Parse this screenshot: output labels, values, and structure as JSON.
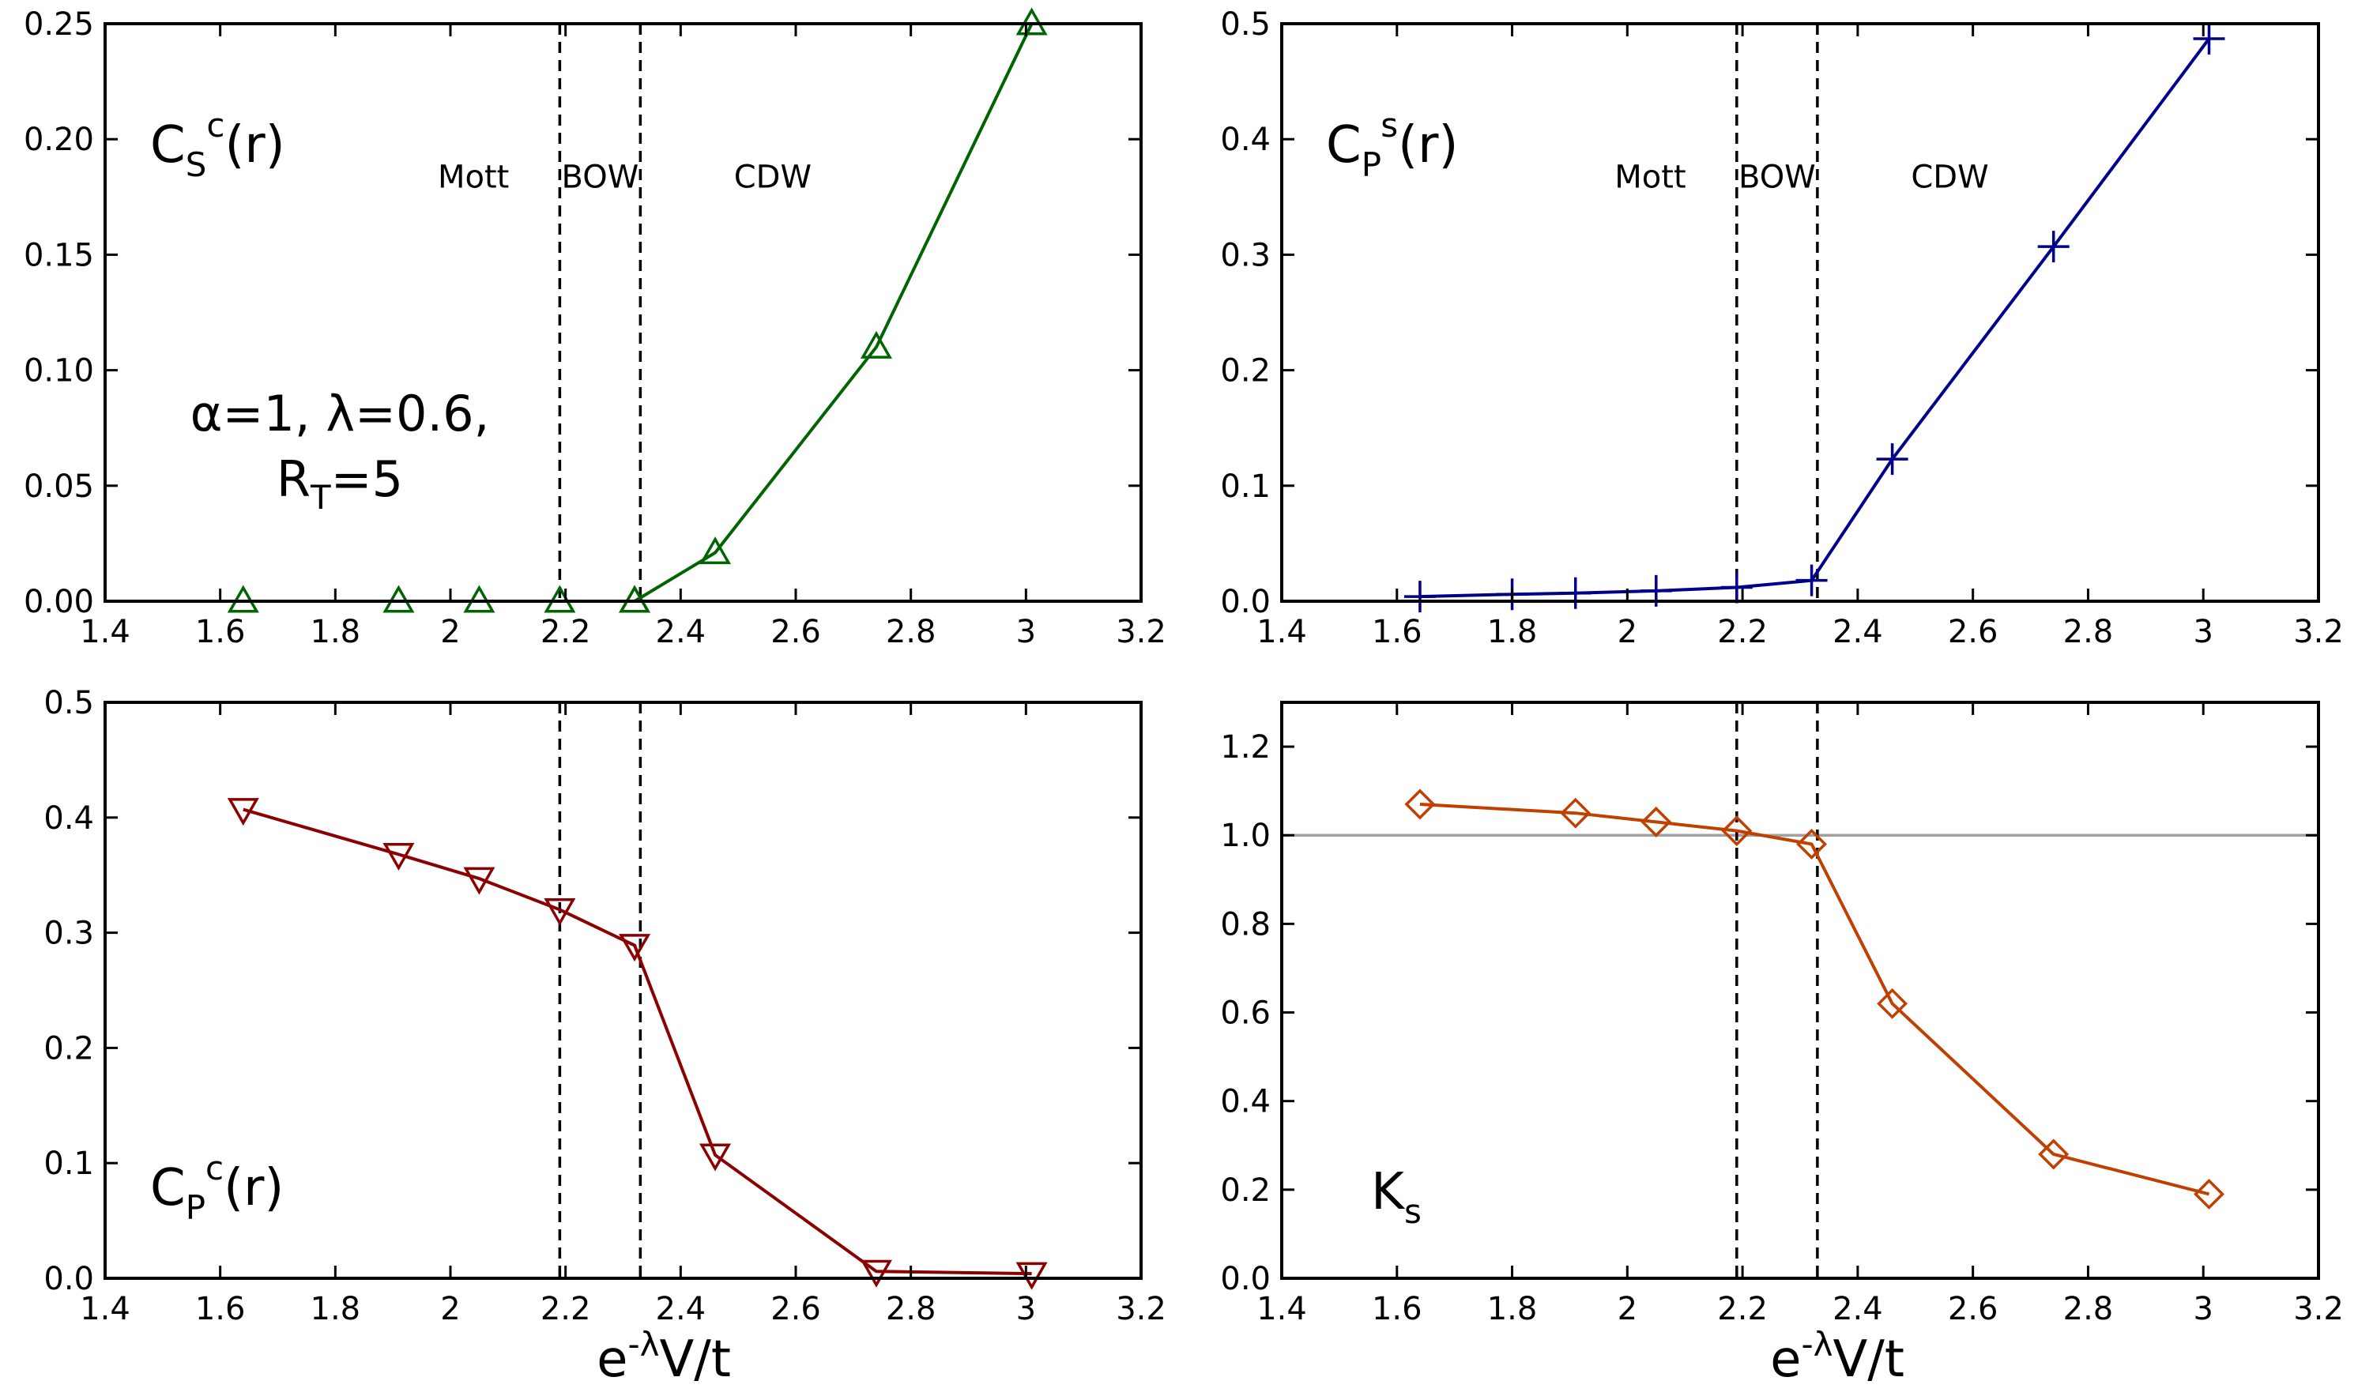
{
  "figure": {
    "xlabel_main": "e",
    "xlabel_sup": "-λ",
    "xlabel_rest": "V/t"
  },
  "chart_data": [
    {
      "id": "top-left",
      "type": "line",
      "ylabel_main": "C",
      "ylabel_sub": "S",
      "ylabel_sup": "c",
      "ylabel_rest": "(r)",
      "xlim": [
        1.4,
        3.2
      ],
      "ylim": [
        0,
        0.25
      ],
      "xticks": [
        1.4,
        1.6,
        1.8,
        2,
        2.2,
        2.4,
        2.6,
        2.8,
        3,
        3.2
      ],
      "xtick_labels": [
        "1.4",
        "1.6",
        "1.8",
        "2",
        "2.2",
        "2.4",
        "2.6",
        "2.8",
        "3",
        "3.2"
      ],
      "yticks": [
        0,
        0.05,
        0.1,
        0.15,
        0.2,
        0.25
      ],
      "ytick_labels": [
        "0.00",
        "0.05",
        "0.10",
        "0.15",
        "0.20",
        "0.25"
      ],
      "phase_lines": [
        2.19,
        2.33
      ],
      "phase_labels": [
        {
          "text": "Mott",
          "x": 2.04,
          "y": 0.179
        },
        {
          "text": "BOW",
          "x": 2.26,
          "y": 0.179
        },
        {
          "text": "CDW",
          "x": 2.56,
          "y": 0.179
        }
      ],
      "annotation_line1": "α=1, λ=0.6,",
      "annotation_line2_main": "R",
      "annotation_line2_sub": "T",
      "annotation_line2_rest": "=5",
      "series": [
        {
          "name": "C_S^c(r)",
          "color": "#006400",
          "marker": "triangle-up",
          "scatter_only": true,
          "x": [
            1.64,
            1.91,
            2.05,
            2.19,
            2.32
          ],
          "y": [
            0.0,
            0.0,
            0.0,
            0.0,
            0.0
          ]
        },
        {
          "name": "C_S^c(r) line",
          "color": "#006400",
          "marker": "triangle-up",
          "x": [
            2.32,
            2.46,
            2.74,
            3.01
          ],
          "y": [
            0.0,
            0.021,
            0.11,
            0.25
          ]
        }
      ]
    },
    {
      "id": "top-right",
      "type": "line",
      "ylabel_main": "C",
      "ylabel_sub": "P",
      "ylabel_sup": "s",
      "ylabel_rest": "(r)",
      "xlim": [
        1.4,
        3.2
      ],
      "ylim": [
        0,
        0.5
      ],
      "xticks": [
        1.4,
        1.6,
        1.8,
        2,
        2.2,
        2.4,
        2.6,
        2.8,
        3,
        3.2
      ],
      "xtick_labels": [
        "1.4",
        "1.6",
        "1.8",
        "2",
        "2.2",
        "2.4",
        "2.6",
        "2.8",
        "3",
        "3.2"
      ],
      "yticks": [
        0,
        0.1,
        0.2,
        0.3,
        0.4,
        0.5
      ],
      "ytick_labels": [
        "0.0",
        "0.1",
        "0.2",
        "0.3",
        "0.4",
        "0.5"
      ],
      "phase_lines": [
        2.19,
        2.33
      ],
      "phase_labels": [
        {
          "text": "Mott",
          "x": 2.04,
          "y": 0.358
        },
        {
          "text": "BOW",
          "x": 2.26,
          "y": 0.358
        },
        {
          "text": "CDW",
          "x": 2.56,
          "y": 0.358
        }
      ],
      "series": [
        {
          "name": "C_P^s(r)",
          "color": "#00008b",
          "marker": "plus",
          "x": [
            1.64,
            1.8,
            1.91,
            2.05,
            2.19,
            2.32,
            2.46,
            2.74,
            3.01
          ],
          "y": [
            0.004,
            0.006,
            0.007,
            0.009,
            0.012,
            0.018,
            0.123,
            0.307,
            0.487
          ]
        }
      ]
    },
    {
      "id": "bottom-left",
      "type": "line",
      "ylabel_main": "C",
      "ylabel_sub": "P",
      "ylabel_sup": "c",
      "ylabel_rest": "(r)",
      "xlim": [
        1.4,
        3.2
      ],
      "ylim": [
        0,
        0.5
      ],
      "xticks": [
        1.4,
        1.6,
        1.8,
        2,
        2.2,
        2.4,
        2.6,
        2.8,
        3,
        3.2
      ],
      "xtick_labels": [
        "1.4",
        "1.6",
        "1.8",
        "2",
        "2.2",
        "2.4",
        "2.6",
        "2.8",
        "3",
        "3.2"
      ],
      "yticks": [
        0,
        0.1,
        0.2,
        0.3,
        0.4,
        0.5
      ],
      "ytick_labels": [
        "0.0",
        "0.1",
        "0.2",
        "0.3",
        "0.4",
        "0.5"
      ],
      "phase_lines": [
        2.19,
        2.33
      ],
      "series": [
        {
          "name": "C_P^c(r)",
          "color": "#8b0000",
          "marker": "triangle-down",
          "x": [
            1.64,
            1.91,
            2.05,
            2.19,
            2.32,
            2.46,
            2.74,
            3.01
          ],
          "y": [
            0.407,
            0.368,
            0.347,
            0.32,
            0.289,
            0.107,
            0.006,
            0.004
          ]
        }
      ]
    },
    {
      "id": "bottom-right",
      "type": "line",
      "ylabel_main": "K",
      "ylabel_sub": "s",
      "ylabel_sup": "",
      "ylabel_rest": "",
      "xlim": [
        1.4,
        3.2
      ],
      "ylim": [
        0,
        1.3
      ],
      "xticks": [
        1.4,
        1.6,
        1.8,
        2,
        2.2,
        2.4,
        2.6,
        2.8,
        3,
        3.2
      ],
      "xtick_labels": [
        "1.4",
        "1.6",
        "1.8",
        "2",
        "2.2",
        "2.4",
        "2.6",
        "2.8",
        "3",
        "3.2"
      ],
      "yticks": [
        0,
        0.2,
        0.4,
        0.6,
        0.8,
        1.0,
        1.2
      ],
      "ytick_labels": [
        "0.0",
        "0.2",
        "0.4",
        "0.6",
        "0.8",
        "1.0",
        "1.2"
      ],
      "phase_lines": [
        2.19,
        2.33
      ],
      "hline": 1.0,
      "series": [
        {
          "name": "K_s",
          "color": "#c04000",
          "marker": "diamond",
          "x": [
            1.64,
            1.91,
            2.05,
            2.19,
            2.32,
            2.46,
            2.74,
            3.01
          ],
          "y": [
            1.07,
            1.05,
            1.03,
            1.01,
            0.98,
            0.62,
            0.28,
            0.19
          ]
        }
      ]
    }
  ]
}
